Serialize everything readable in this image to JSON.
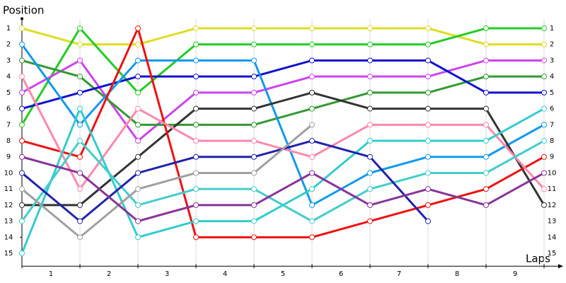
{
  "chart_data": {
    "type": "line",
    "y_label": "Position",
    "x_label": "Laps",
    "x": [
      0,
      1,
      2,
      3,
      4,
      5,
      6,
      7,
      8,
      9
    ],
    "xlim": [
      0,
      9
    ],
    "xticks": [
      {
        "value": 0.5,
        "label": "1"
      },
      {
        "value": 1.5,
        "label": "2"
      },
      {
        "value": 2.5,
        "label": "3"
      },
      {
        "value": 3.5,
        "label": "4"
      },
      {
        "value": 4.5,
        "label": "5"
      },
      {
        "value": 5.5,
        "label": "6"
      },
      {
        "value": 6.5,
        "label": "7"
      },
      {
        "value": 7.5,
        "label": "8"
      },
      {
        "value": 8.5,
        "label": "9"
      }
    ],
    "ylim": [
      0.4,
      15.8
    ],
    "y_inverted": true,
    "yticks": [
      1,
      2,
      3,
      4,
      5,
      6,
      7,
      8,
      9,
      10,
      11,
      12,
      13,
      14,
      15
    ],
    "grid": true,
    "series": [
      {
        "color": "#dddd22",
        "values": [
          1,
          2,
          2,
          1,
          1,
          1,
          1,
          1,
          2,
          2
        ]
      },
      {
        "color": "#22cc22",
        "values": [
          7,
          1,
          5,
          2,
          2,
          2,
          2,
          2,
          1,
          1
        ]
      },
      {
        "color": "#cc44ee",
        "values": [
          5,
          3,
          8,
          5,
          5,
          4,
          4,
          4,
          3,
          3
        ]
      },
      {
        "color": "#339933",
        "values": [
          3,
          4,
          7,
          7,
          7,
          6,
          5,
          5,
          4,
          4
        ]
      },
      {
        "color": "#1111cc",
        "values": [
          6,
          5,
          4,
          4,
          4,
          3,
          3,
          3,
          5,
          5
        ]
      },
      {
        "color": "#1199ee",
        "values": [
          2,
          7,
          3,
          3,
          3,
          12,
          10,
          9,
          9,
          7
        ]
      },
      {
        "color": "#333333",
        "values": [
          12,
          12,
          9,
          6,
          6,
          5,
          6,
          6,
          6,
          12
        ]
      },
      {
        "color": "#ee1111",
        "values": [
          8,
          9,
          1,
          14,
          14,
          14,
          13,
          12,
          11,
          9
        ]
      },
      {
        "color": "#ff88aa",
        "values": [
          4,
          11,
          6,
          8,
          8,
          9,
          7,
          7,
          7,
          11
        ]
      },
      {
        "color": "#33cccc",
        "values": [
          15,
          6,
          14,
          13,
          13,
          11,
          8,
          8,
          8,
          6
        ]
      },
      {
        "color": "#44cccc",
        "values": [
          13,
          8,
          12,
          11,
          11,
          13,
          11,
          10,
          10,
          8
        ]
      },
      {
        "color": "#2222aa",
        "values": [
          10,
          13,
          10,
          9,
          9,
          8,
          9,
          13,
          null,
          null
        ]
      },
      {
        "color": "#a0a0a0",
        "values": [
          11,
          14,
          11,
          10,
          10,
          7,
          null,
          null,
          null,
          null
        ]
      },
      {
        "color": "#883399",
        "values": [
          9,
          10,
          13,
          12,
          12,
          10,
          12,
          11,
          12,
          10
        ]
      }
    ]
  }
}
